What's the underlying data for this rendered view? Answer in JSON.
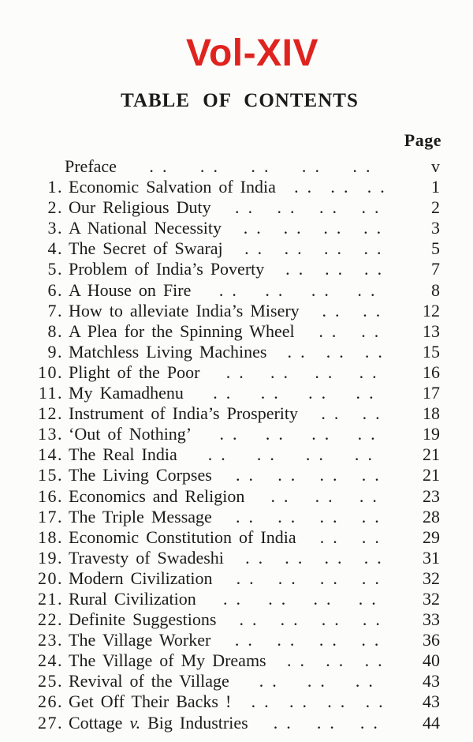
{
  "header": {
    "volume_label": "Vol-XIV",
    "title": "TABLE OF CONTENTS",
    "page_column_header": "Page"
  },
  "colors": {
    "volume_red": "#df231f",
    "ink": "#1b1b1b",
    "paper": "#fcfcfa"
  },
  "leader": {
    "dot_group": ". ."
  },
  "entries": [
    {
      "num": "",
      "title": "Preface",
      "dots": 5,
      "page": "v"
    },
    {
      "num": "1.",
      "title": "Economic Salvation of India",
      "dots": 3,
      "page": "1"
    },
    {
      "num": "2.",
      "title": "Our Religious Duty",
      "dots": 4,
      "page": "2"
    },
    {
      "num": "3.",
      "title": "A National Necessity",
      "dots": 4,
      "page": "3"
    },
    {
      "num": "4.",
      "title": "The Secret of Swaraj",
      "dots": 4,
      "page": "5"
    },
    {
      "num": "5.",
      "title": "Problem of India’s Poverty",
      "dots": 3,
      "page": "7"
    },
    {
      "num": "6.",
      "title": "A House on Fire",
      "dots": 4,
      "page": "8"
    },
    {
      "num": "7.",
      "title": "How to alleviate India’s Misery",
      "dots": 2,
      "page": "12"
    },
    {
      "num": "8.",
      "title": "A Plea for the Spinning Wheel",
      "dots": 2,
      "page": "13"
    },
    {
      "num": "9.",
      "title": "Matchless Living Machines",
      "dots": 3,
      "page": "15"
    },
    {
      "num": "10.",
      "title": "Plight of the Poor",
      "dots": 4,
      "page": "16"
    },
    {
      "num": "11.",
      "title": "My Kamadhenu",
      "dots": 4,
      "page": "17"
    },
    {
      "num": "12.",
      "title": "Instrument of India’s Prosperity",
      "dots": 2,
      "page": "18"
    },
    {
      "num": "13.",
      "title": "‘Out of Nothing’",
      "dots": 4,
      "page": "19"
    },
    {
      "num": "14.",
      "title": "The Real India",
      "dots": 4,
      "page": "21"
    },
    {
      "num": "15.",
      "title": "The Living Corpses",
      "dots": 4,
      "page": "21"
    },
    {
      "num": "16.",
      "title": "Economics and Religion",
      "dots": 3,
      "page": "23"
    },
    {
      "num": "17.",
      "title": "The Triple Message",
      "dots": 4,
      "page": "28"
    },
    {
      "num": "18.",
      "title": "Economic Constitution of India",
      "dots": 2,
      "page": "29"
    },
    {
      "num": "19.",
      "title": "Travesty of Swadeshi",
      "dots": 4,
      "page": "31"
    },
    {
      "num": "20.",
      "title": "Modern Civilization",
      "dots": 4,
      "page": "32"
    },
    {
      "num": "21.",
      "title": "Rural Civilization",
      "dots": 4,
      "page": "32"
    },
    {
      "num": "22.",
      "title": "Definite Suggestions",
      "dots": 4,
      "page": "33"
    },
    {
      "num": "23.",
      "title": "The Village Worker",
      "dots": 4,
      "page": "36"
    },
    {
      "num": "24.",
      "title": "The Village of My Dreams",
      "dots": 3,
      "page": "40"
    },
    {
      "num": "25.",
      "title": "Revival of the Village",
      "dots": 3,
      "page": "43"
    },
    {
      "num": "26.",
      "title": "Get Off Their Backs !",
      "dots": 4,
      "page": "43"
    },
    {
      "num": "27.",
      "title": "Cottage v. Big Industries",
      "title_parts": [
        {
          "t": "Cottage ",
          "i": false
        },
        {
          "t": "v.",
          "i": true
        },
        {
          "t": " Big Industries",
          "i": false
        }
      ],
      "dots": 3,
      "page": "44"
    }
  ]
}
